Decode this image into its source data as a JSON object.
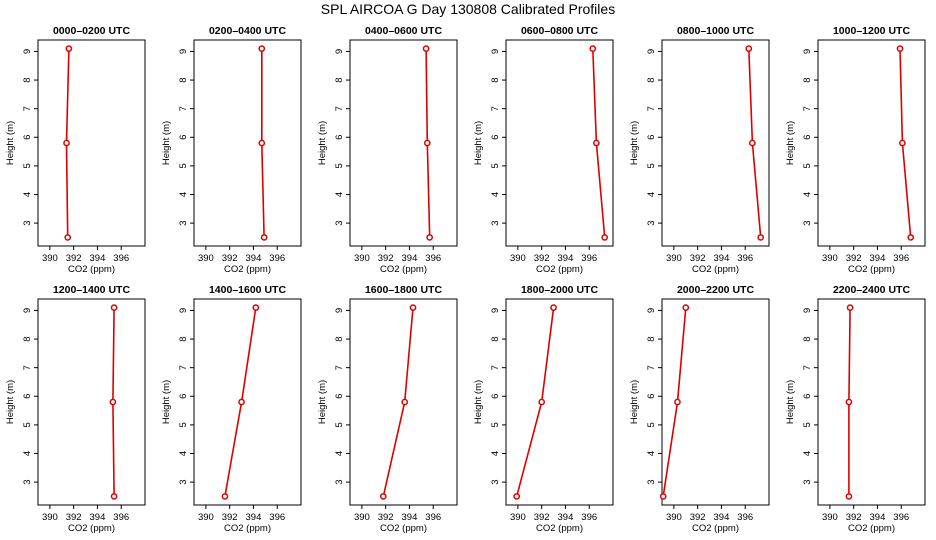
{
  "title": "SPL AIRCOA G  Day 130808  Calibrated Profiles",
  "colors": {
    "series": "#dd0000",
    "axis": "#000000",
    "background": "#ffffff"
  },
  "chart_data": [
    {
      "type": "line",
      "title": "0000–0200 UTC",
      "xlabel": "CO2 (ppm)",
      "ylabel": "Height (m)",
      "xlim": [
        389,
        398
      ],
      "ylim": [
        2.2,
        9.4
      ],
      "xticks": [
        390,
        392,
        394,
        396
      ],
      "yticks": [
        3,
        4,
        5,
        6,
        7,
        8,
        9
      ],
      "x": [
        391.6,
        391.4,
        391.5
      ],
      "y": [
        9.1,
        5.8,
        2.5
      ]
    },
    {
      "type": "line",
      "title": "0200–0400 UTC",
      "xlabel": "CO2 (ppm)",
      "ylabel": "Height (m)",
      "xlim": [
        389,
        398
      ],
      "ylim": [
        2.2,
        9.4
      ],
      "xticks": [
        390,
        392,
        394,
        396
      ],
      "yticks": [
        3,
        4,
        5,
        6,
        7,
        8,
        9
      ],
      "x": [
        394.7,
        394.7,
        394.9
      ],
      "y": [
        9.1,
        5.8,
        2.5
      ]
    },
    {
      "type": "line",
      "title": "0400–0600 UTC",
      "xlabel": "CO2 (ppm)",
      "ylabel": "Height (m)",
      "xlim": [
        389,
        398
      ],
      "ylim": [
        2.2,
        9.4
      ],
      "xticks": [
        390,
        392,
        394,
        396
      ],
      "yticks": [
        3,
        4,
        5,
        6,
        7,
        8,
        9
      ],
      "x": [
        395.4,
        395.5,
        395.7
      ],
      "y": [
        9.1,
        5.8,
        2.5
      ]
    },
    {
      "type": "line",
      "title": "0600–0800 UTC",
      "xlabel": "CO2 (ppm)",
      "ylabel": "Height (m)",
      "xlim": [
        389,
        398
      ],
      "ylim": [
        2.2,
        9.4
      ],
      "xticks": [
        390,
        392,
        394,
        396
      ],
      "yticks": [
        3,
        4,
        5,
        6,
        7,
        8,
        9
      ],
      "x": [
        396.3,
        396.6,
        397.3
      ],
      "y": [
        9.1,
        5.8,
        2.5
      ]
    },
    {
      "type": "line",
      "title": "0800–1000 UTC",
      "xlabel": "CO2 (ppm)",
      "ylabel": "Height (m)",
      "xlim": [
        389,
        398
      ],
      "ylim": [
        2.2,
        9.4
      ],
      "xticks": [
        390,
        392,
        394,
        396
      ],
      "yticks": [
        3,
        4,
        5,
        6,
        7,
        8,
        9
      ],
      "x": [
        396.3,
        396.6,
        397.3
      ],
      "y": [
        9.1,
        5.8,
        2.5
      ]
    },
    {
      "type": "line",
      "title": "1000–1200 UTC",
      "xlabel": "CO2 (ppm)",
      "ylabel": "Height (m)",
      "xlim": [
        389,
        398
      ],
      "ylim": [
        2.2,
        9.4
      ],
      "xticks": [
        390,
        392,
        394,
        396
      ],
      "yticks": [
        3,
        4,
        5,
        6,
        7,
        8,
        9
      ],
      "x": [
        395.9,
        396.1,
        396.8
      ],
      "y": [
        9.1,
        5.8,
        2.5
      ]
    },
    {
      "type": "line",
      "title": "1200–1400 UTC",
      "xlabel": "CO2 (ppm)",
      "ylabel": "Height (m)",
      "xlim": [
        389,
        398
      ],
      "ylim": [
        2.2,
        9.4
      ],
      "xticks": [
        390,
        392,
        394,
        396
      ],
      "yticks": [
        3,
        4,
        5,
        6,
        7,
        8,
        9
      ],
      "x": [
        395.4,
        395.3,
        395.4
      ],
      "y": [
        9.1,
        5.8,
        2.5
      ]
    },
    {
      "type": "line",
      "title": "1400–1600 UTC",
      "xlabel": "CO2 (ppm)",
      "ylabel": "Height (m)",
      "xlim": [
        389,
        398
      ],
      "ylim": [
        2.2,
        9.4
      ],
      "xticks": [
        390,
        392,
        394,
        396
      ],
      "yticks": [
        3,
        4,
        5,
        6,
        7,
        8,
        9
      ],
      "x": [
        394.2,
        393.0,
        391.6
      ],
      "y": [
        9.1,
        5.8,
        2.5
      ]
    },
    {
      "type": "line",
      "title": "1600–1800 UTC",
      "xlabel": "CO2 (ppm)",
      "ylabel": "Height (m)",
      "xlim": [
        389,
        398
      ],
      "ylim": [
        2.2,
        9.4
      ],
      "xticks": [
        390,
        392,
        394,
        396
      ],
      "yticks": [
        3,
        4,
        5,
        6,
        7,
        8,
        9
      ],
      "x": [
        394.3,
        393.6,
        391.8
      ],
      "y": [
        9.1,
        5.8,
        2.5
      ]
    },
    {
      "type": "line",
      "title": "1800–2000 UTC",
      "xlabel": "CO2 (ppm)",
      "ylabel": "Height (m)",
      "xlim": [
        389,
        398
      ],
      "ylim": [
        2.2,
        9.4
      ],
      "xticks": [
        390,
        392,
        394,
        396
      ],
      "yticks": [
        3,
        4,
        5,
        6,
        7,
        8,
        9
      ],
      "x": [
        393.0,
        392.0,
        389.9
      ],
      "y": [
        9.1,
        5.8,
        2.5
      ]
    },
    {
      "type": "line",
      "title": "2000–2200 UTC",
      "xlabel": "CO2 (ppm)",
      "ylabel": "Height (m)",
      "xlim": [
        389,
        398
      ],
      "ylim": [
        2.2,
        9.4
      ],
      "xticks": [
        390,
        392,
        394,
        396
      ],
      "yticks": [
        3,
        4,
        5,
        6,
        7,
        8,
        9
      ],
      "x": [
        391.0,
        390.3,
        389.1
      ],
      "y": [
        9.1,
        5.8,
        2.5
      ]
    },
    {
      "type": "line",
      "title": "2200–2400 UTC",
      "xlabel": "CO2 (ppm)",
      "ylabel": "Height (m)",
      "xlim": [
        389,
        398
      ],
      "ylim": [
        2.2,
        9.4
      ],
      "xticks": [
        390,
        392,
        394,
        396
      ],
      "yticks": [
        3,
        4,
        5,
        6,
        7,
        8,
        9
      ],
      "x": [
        391.7,
        391.6,
        391.6
      ],
      "y": [
        9.1,
        5.8,
        2.5
      ]
    }
  ]
}
